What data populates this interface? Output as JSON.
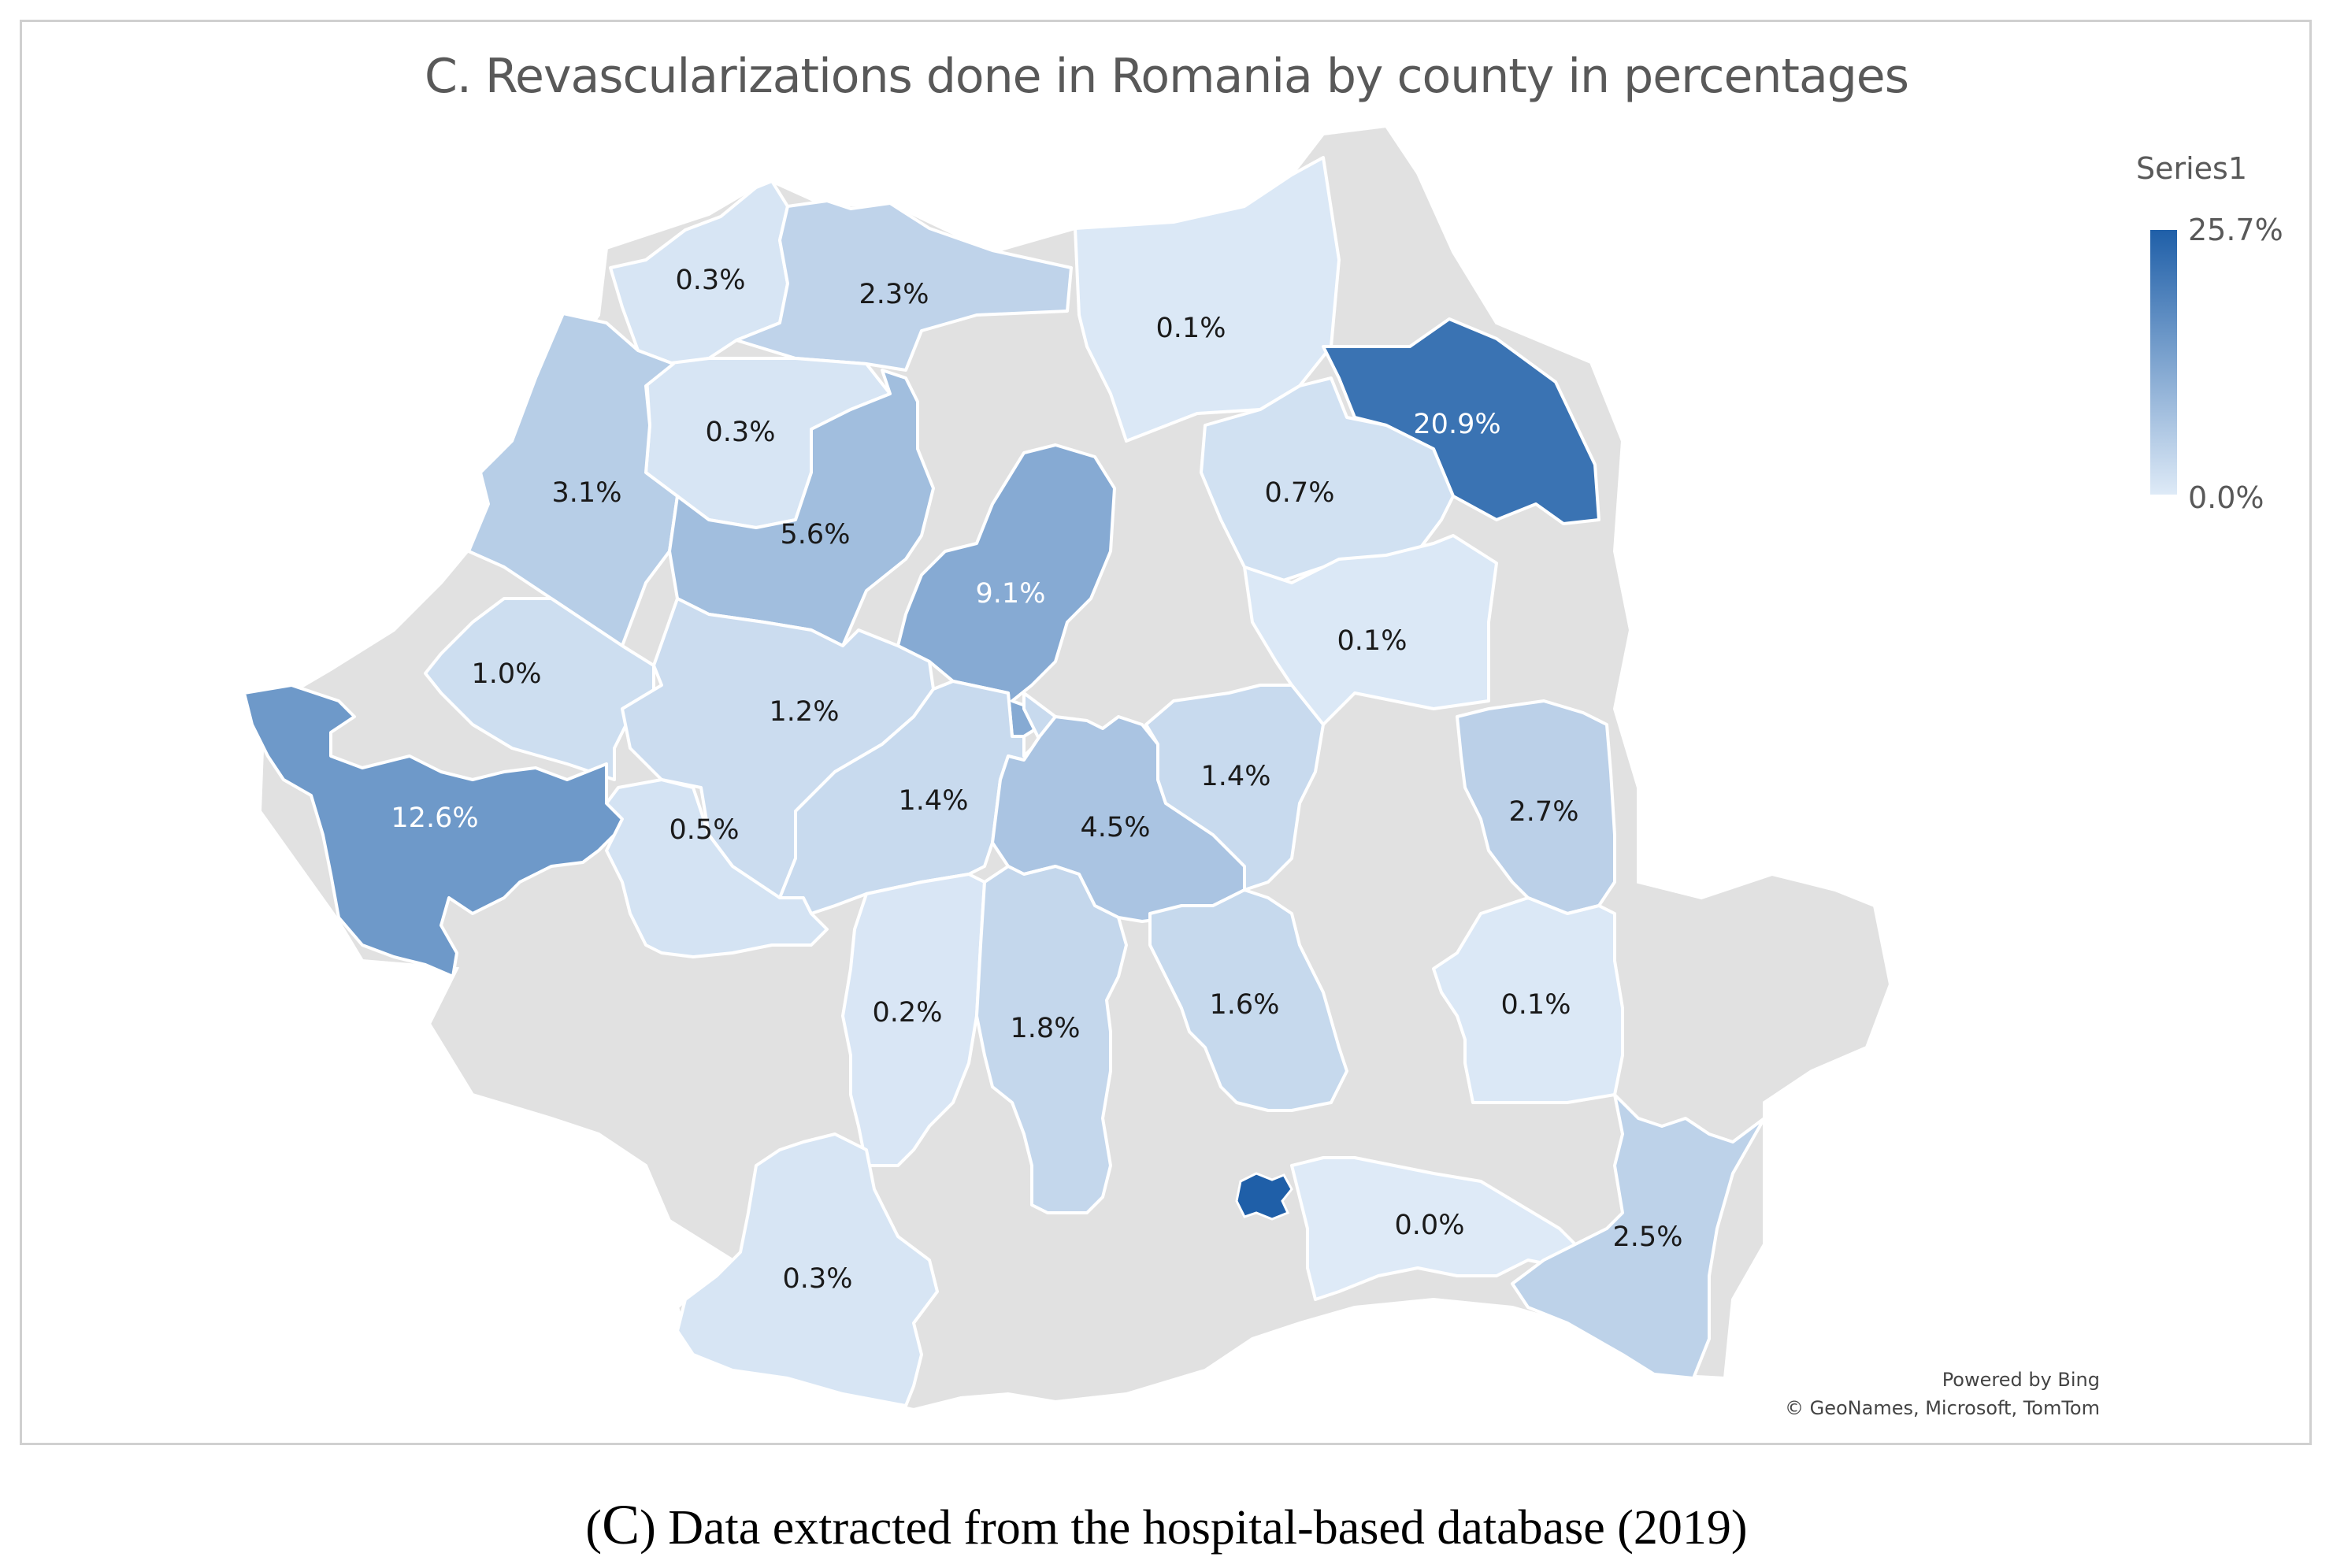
{
  "title": "C. Revascularizations done in Romania by county in percentages",
  "legend": {
    "title": "Series1",
    "max_label": "25.7%",
    "min_label": "0.0%",
    "max_value": 25.7,
    "min_value": 0.0,
    "color_high": "#1f5fa8",
    "color_low": "#deeaf7"
  },
  "no_data_color": "#e1e1e1",
  "chart_data": {
    "type": "choropleth",
    "title": "C. Revascularizations done in Romania by county in percentages",
    "series_name": "Series1",
    "scale_range": [
      0.0,
      25.7
    ],
    "labels": [
      "0.3%",
      "2.3%",
      "0.1%",
      "20.9%",
      "0.3%",
      "3.1%",
      "5.6%",
      "9.1%",
      "0.7%",
      "0.1%",
      "1.0%",
      "1.2%",
      "12.6%",
      "0.5%",
      "1.4%",
      "4.5%",
      "1.4%",
      "2.7%",
      "0.2%",
      "1.8%",
      "1.6%",
      "0.1%",
      "0.0%",
      "2.5%",
      "0.3%"
    ],
    "values": [
      0.3,
      2.3,
      0.1,
      20.9,
      0.3,
      3.1,
      5.6,
      9.1,
      0.7,
      0.1,
      1.0,
      1.2,
      12.6,
      0.5,
      1.4,
      4.5,
      1.4,
      2.7,
      0.2,
      1.8,
      1.6,
      0.1,
      0.0,
      2.5,
      0.3
    ],
    "unlabeled_regions": [
      {
        "name": "Bucharest",
        "value": 25.7
      }
    ]
  },
  "attribution": {
    "powered_by": "Powered by Bing",
    "copyright": "© GeoNames, Microsoft, TomTom"
  },
  "caption": {
    "letter": "C",
    "text": " Data extracted from the hospital-based database (2019)"
  }
}
